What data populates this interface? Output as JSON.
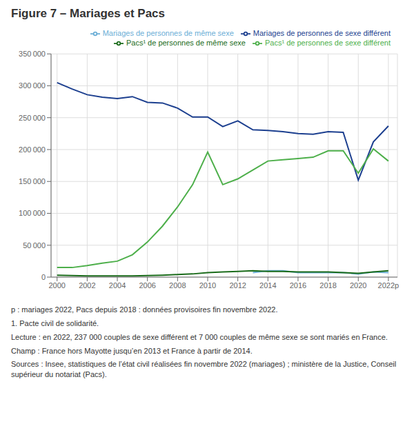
{
  "chart_data": {
    "type": "line",
    "title": "Figure 7 – Mariages et Pacs",
    "x": [
      2000,
      2001,
      2002,
      2003,
      2004,
      2005,
      2006,
      2007,
      2008,
      2009,
      2010,
      2011,
      2012,
      2013,
      2014,
      2015,
      2016,
      2017,
      2018,
      2019,
      2020,
      2021,
      2022
    ],
    "series": [
      {
        "name": "Mariages de personnes de sexe différent",
        "color": "#1c3f8f",
        "values": [
          305000,
          295000,
          286000,
          282000,
          280000,
          283000,
          274000,
          273000,
          265000,
          251000,
          251000,
          236000,
          245000,
          231000,
          230000,
          228000,
          225000,
          224000,
          228000,
          227000,
          152000,
          212000,
          237000
        ]
      },
      {
        "name": "Mariages de personnes de même sexe",
        "color": "#6baed6",
        "values": [
          null,
          null,
          null,
          null,
          null,
          null,
          null,
          null,
          null,
          null,
          null,
          null,
          null,
          7000,
          10000,
          10000,
          7000,
          7000,
          7000,
          7000,
          5000,
          8000,
          7000
        ]
      },
      {
        "name": "Pacs¹ de personnes de sexe différent",
        "color": "#4daf4a",
        "values": [
          15000,
          15000,
          18000,
          22000,
          25000,
          35000,
          55000,
          80000,
          110000,
          145000,
          196000,
          145000,
          154000,
          168000,
          182000,
          184000,
          186000,
          188000,
          198000,
          198000,
          163000,
          201000,
          182000
        ]
      },
      {
        "name": "Pacs¹ de personnes de même sexe",
        "color": "#1a6b1a",
        "values": [
          3000,
          2500,
          2000,
          2000,
          2000,
          2000,
          2500,
          3000,
          4000,
          5000,
          7000,
          8000,
          9000,
          10000,
          9000,
          9000,
          8000,
          8000,
          8000,
          7000,
          6000,
          8000,
          10000
        ]
      }
    ],
    "xlim": [
      1999.6,
      2022.6
    ],
    "xticks": [
      2000,
      2002,
      2004,
      2006,
      2008,
      2010,
      2012,
      2014,
      2016,
      2018,
      2020,
      {
        "value": 2022,
        "label": "2022p"
      }
    ],
    "ylim": [
      0,
      350000
    ],
    "yticks": [
      0,
      {
        "value": 50000,
        "label": "50 000"
      },
      {
        "value": 100000,
        "label": "100 000"
      },
      {
        "value": 150000,
        "label": "150 000"
      },
      {
        "value": 200000,
        "label": "200 000"
      },
      {
        "value": 250000,
        "label": "250 000"
      },
      {
        "value": 300000,
        "label": "300 000"
      },
      {
        "value": 350000,
        "label": "350 000"
      }
    ],
    "grid": true,
    "legend": "upper right",
    "annotations": [
      "p : mariages 2022, Pacs depuis 2018 : données provisoires fin novembre 2022.",
      "1. Pacte civil de solidarité.",
      "Lecture : en 2022, 237 000 couples de sexe différent et 7 000 couples de même sexe se sont mariés en France.",
      "Champ : France hors Mayotte jusqu’en 2013 et France à partir de 2014.",
      "Sources : Insee, statistiques de l’état civil réalisées fin novembre 2022 (mariages) ; ministère de la Justice, Conseil supérieur du notariat (Pacs)."
    ]
  }
}
